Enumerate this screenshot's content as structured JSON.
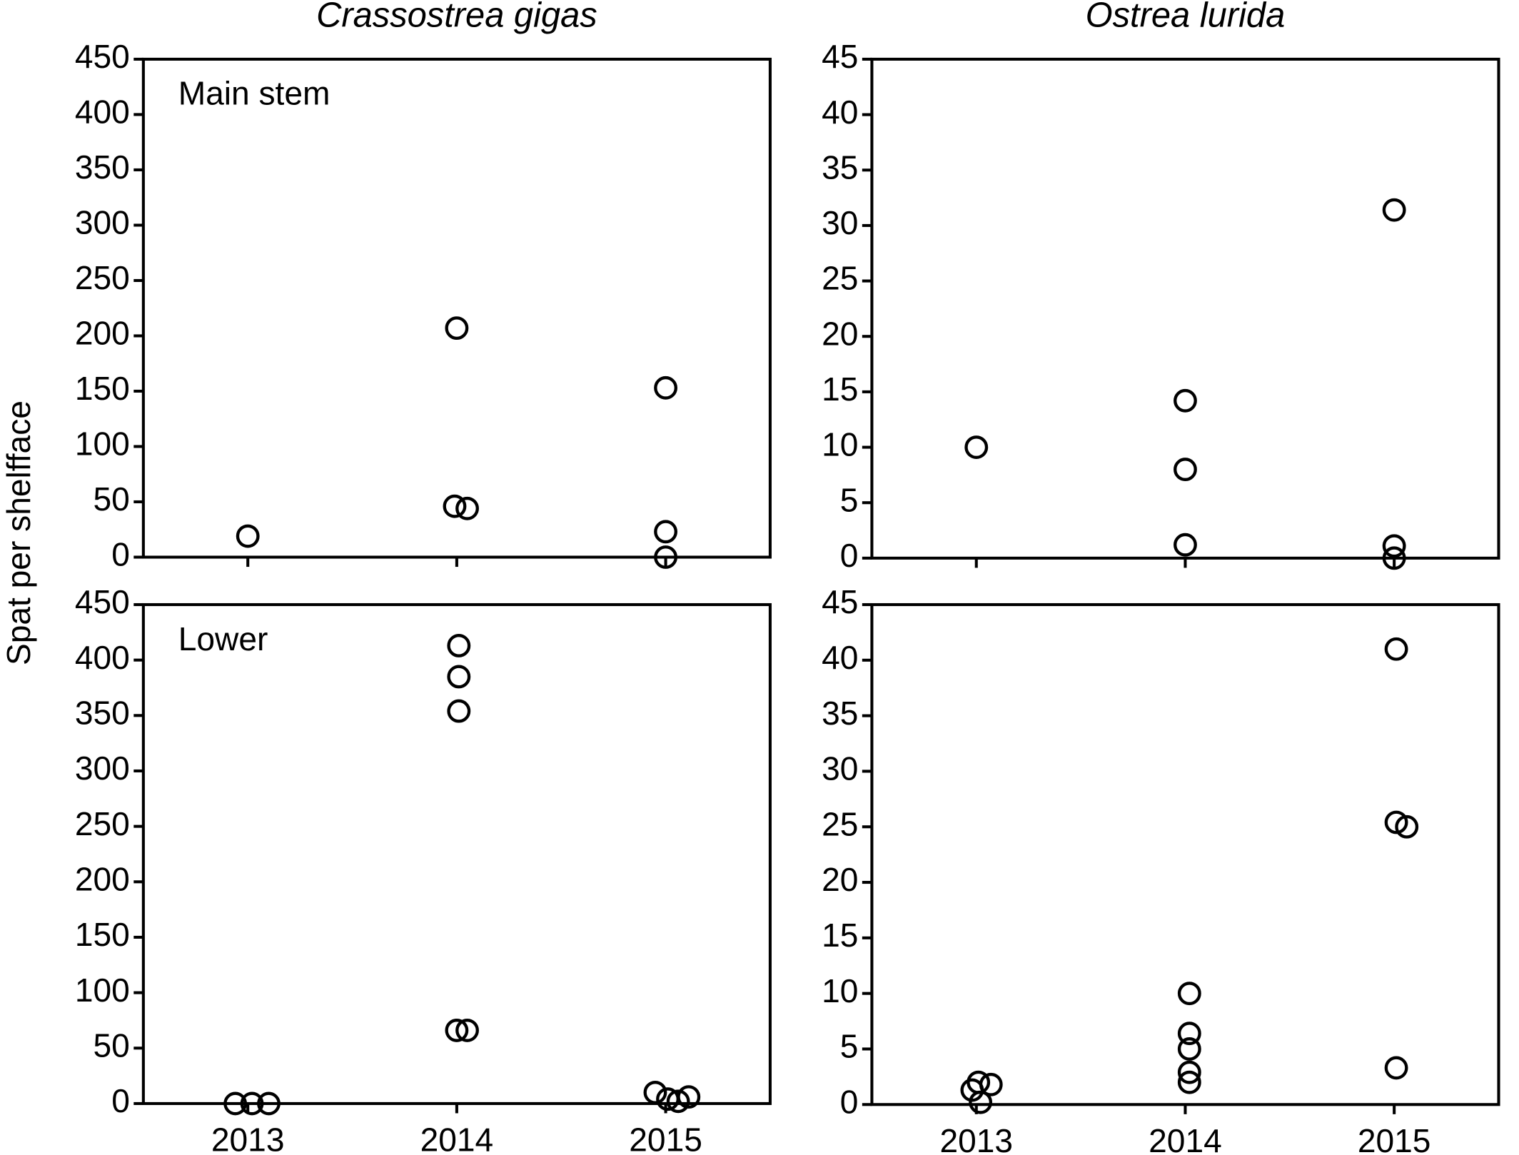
{
  "ylabel": "Spat per shelfface",
  "chart_data": [
    {
      "type": "scatter",
      "title": "Crassostrea gigas",
      "annotation": "Main stem",
      "x": [
        2013,
        2014,
        2013.99,
        2014.05,
        2015,
        2015,
        2015
      ],
      "values": [
        19,
        207,
        46,
        44,
        153,
        23,
        0
      ],
      "xlim": [
        2012.5,
        2015.5
      ],
      "xticks": [
        2013,
        2014,
        2015
      ],
      "xtick_labels": false,
      "ylim": [
        0,
        450
      ],
      "yticks": [
        0,
        50,
        100,
        150,
        200,
        250,
        300,
        350,
        400,
        450
      ]
    },
    {
      "type": "scatter",
      "title": "Ostrea lurida",
      "x": [
        2013,
        2014,
        2014,
        2014,
        2015,
        2015,
        2015
      ],
      "values": [
        10,
        14.2,
        8,
        1.2,
        31.4,
        1.1,
        0
      ],
      "xlim": [
        2012.5,
        2015.5
      ],
      "xticks": [
        2013,
        2014,
        2015
      ],
      "xtick_labels": false,
      "ylim": [
        0,
        45
      ],
      "yticks": [
        0,
        5,
        10,
        15,
        20,
        25,
        30,
        35,
        40,
        45
      ]
    },
    {
      "type": "scatter",
      "annotation": "Lower",
      "x": [
        2012.94,
        2013.02,
        2013.1,
        2014.01,
        2014.01,
        2014.01,
        2014,
        2014.05,
        2014.95,
        2015.01,
        2015.06,
        2015.11
      ],
      "values": [
        0,
        0,
        0,
        413,
        385,
        354,
        66,
        66,
        10,
        4,
        2,
        6
      ],
      "xlim": [
        2012.5,
        2015.5
      ],
      "xticks": [
        2013,
        2014,
        2015
      ],
      "xtick_labels": true,
      "ylim": [
        0,
        450
      ],
      "yticks": [
        0,
        50,
        100,
        150,
        200,
        250,
        300,
        350,
        400,
        450
      ]
    },
    {
      "type": "scatter",
      "x": [
        2012.98,
        2013.01,
        2013.07,
        2013.02,
        2014.02,
        2014.02,
        2014.02,
        2014.02,
        2014.02,
        2015.01,
        2015.01,
        2015.06,
        2015.01
      ],
      "values": [
        1.3,
        2,
        1.8,
        0.2,
        10,
        6.4,
        5,
        2.9,
        2,
        41,
        25.4,
        25,
        3.3
      ],
      "xlim": [
        2012.5,
        2015.5
      ],
      "xticks": [
        2013,
        2014,
        2015
      ],
      "xtick_labels": true,
      "ylim": [
        0,
        45
      ],
      "yticks": [
        0,
        5,
        10,
        15,
        20,
        25,
        30,
        35,
        40,
        45
      ]
    }
  ]
}
